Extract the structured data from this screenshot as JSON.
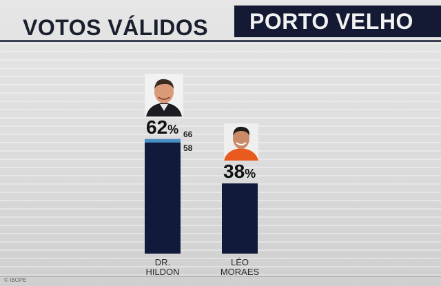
{
  "header": {
    "title": "VOTOS VÁLIDOS",
    "city": "PORTO VELHO"
  },
  "footer": {
    "source": "© IBOPE"
  },
  "colors": {
    "bar": "#101a3a",
    "margin_band": "#4a8fc4",
    "title_box": "#141a33"
  },
  "chart_data": {
    "type": "bar",
    "title": "VOTOS VÁLIDOS",
    "categories": [
      "DR. HILDON",
      "LÉO MORAES"
    ],
    "values": [
      62,
      38
    ],
    "ylim": [
      0,
      100
    ],
    "candidates": [
      {
        "name_line1": "DR.",
        "name_line2": "HILDON",
        "value": 62,
        "unit": "%",
        "range_high": 66,
        "range_low": 58
      },
      {
        "name_line1": "LÉO",
        "name_line2": "MORAES",
        "value": 38,
        "unit": "%"
      }
    ],
    "grid": false,
    "legend": "none"
  }
}
